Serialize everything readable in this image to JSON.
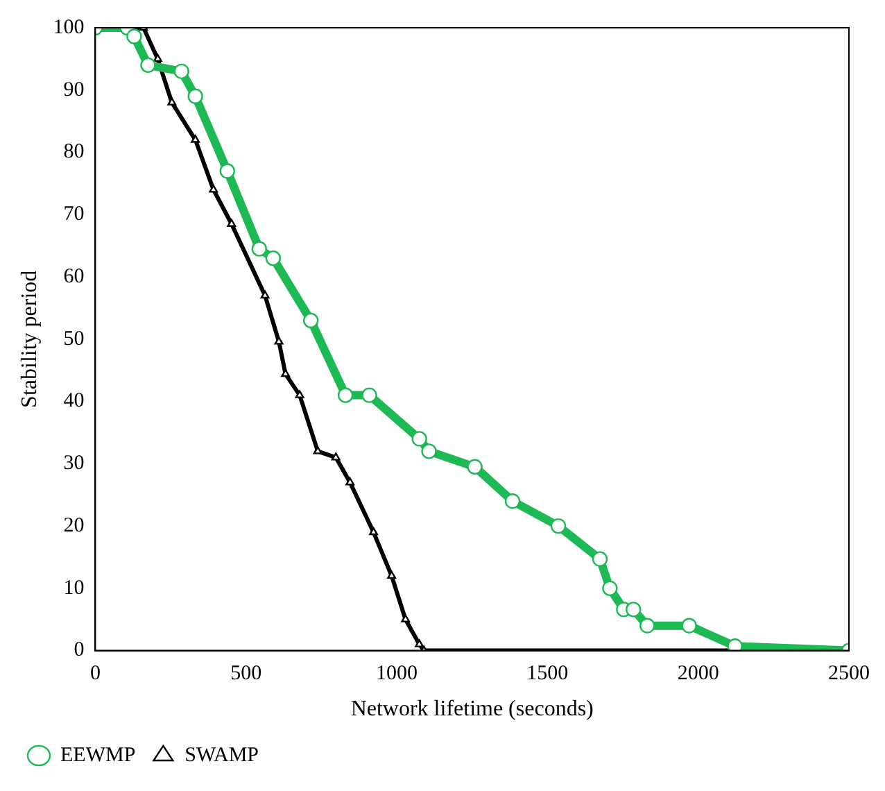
{
  "chart_data": {
    "type": "line",
    "xlabel": "Network lifetime (seconds)",
    "ylabel": "Stability period",
    "xlim": [
      0,
      2500
    ],
    "xticks": [
      0,
      500,
      1000,
      1500,
      2000,
      2500
    ],
    "ylim": [
      0,
      100
    ],
    "yticks": [
      0,
      10,
      20,
      30,
      40,
      50,
      60,
      70,
      80,
      90,
      100
    ],
    "grid": false,
    "legend": "bottom left",
    "line_style": "solid",
    "series": [
      {
        "name": "EEWMP",
        "color": "#1db954",
        "marker": "circle",
        "x": [
          0,
          106,
          129,
          175,
          286,
          332,
          438,
          544,
          590,
          715,
          830,
          909,
          1075,
          1107,
          1259,
          1384,
          1536,
          1674,
          1707,
          1753,
          1785,
          1831,
          1970,
          2122,
          2500
        ],
        "values": [
          100,
          100,
          98.6,
          94,
          93,
          89,
          77,
          64.5,
          63,
          53,
          41,
          41,
          34,
          32,
          29.5,
          24,
          20,
          14.7,
          10,
          6.6,
          6.6,
          4,
          4,
          0.7,
          0
        ]
      },
      {
        "name": "SWAMP",
        "color": "#000000",
        "marker": "triangle",
        "x": [
          0,
          160,
          207,
          254,
          332,
          392,
          452,
          563,
          609,
          631,
          678,
          738,
          798,
          845,
          923,
          983,
          1029,
          1075,
          1090,
          2500
        ],
        "values": [
          100,
          100,
          95,
          88,
          82,
          74,
          68.5,
          57,
          49.6,
          44.4,
          41,
          32,
          31,
          27,
          19,
          12,
          5,
          1,
          0,
          0
        ]
      }
    ]
  }
}
